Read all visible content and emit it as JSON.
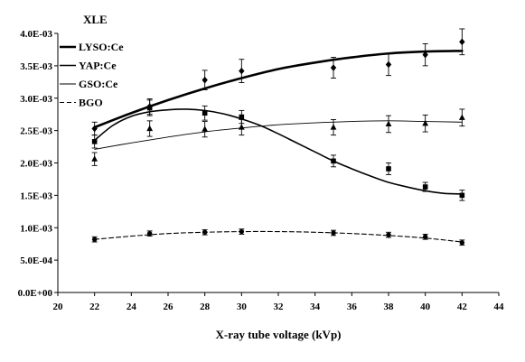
{
  "chart_data": {
    "type": "line",
    "title": "",
    "ylabel": "XLE",
    "xlabel": "X-ray tube voltage (kVp)",
    "xlim": [
      20,
      44
    ],
    "ylim": [
      0,
      0.004
    ],
    "x_ticks": [
      20,
      22,
      24,
      26,
      28,
      30,
      32,
      34,
      36,
      38,
      40,
      42,
      44
    ],
    "y_ticks": [
      {
        "value": 0,
        "label": "0.0E+00"
      },
      {
        "value": 0.0005,
        "label": "5.0E-04"
      },
      {
        "value": 0.001,
        "label": "1.0E-03"
      },
      {
        "value": 0.0015,
        "label": "1.5E-03"
      },
      {
        "value": 0.002,
        "label": "2.0E-03"
      },
      {
        "value": 0.0025,
        "label": "2.5E-03"
      },
      {
        "value": 0.003,
        "label": "3.0E-03"
      },
      {
        "value": 0.0035,
        "label": "3.5E-03"
      },
      {
        "value": 0.004,
        "label": "4.0E-03"
      }
    ],
    "grid": false,
    "legend_position": "top-left",
    "series": [
      {
        "name": "LYSO:Ce",
        "marker": "diamond",
        "line_style": "solid-thick",
        "points": [
          {
            "x": 22,
            "y": 0.00253,
            "err": 0.0001
          },
          {
            "x": 25,
            "y": 0.00287,
            "err": 0.00012
          },
          {
            "x": 28,
            "y": 0.00328,
            "err": 0.00015
          },
          {
            "x": 30,
            "y": 0.00342,
            "err": 0.00018
          },
          {
            "x": 35,
            "y": 0.00347,
            "err": 0.00016
          },
          {
            "x": 38,
            "y": 0.00352,
            "err": 0.00017
          },
          {
            "x": 40,
            "y": 0.00367,
            "err": 0.00017
          },
          {
            "x": 42,
            "y": 0.00387,
            "err": 0.0002
          }
        ],
        "trend": [
          {
            "x": 22,
            "y": 0.00255
          },
          {
            "x": 24,
            "y": 0.00277
          },
          {
            "x": 26,
            "y": 0.00297
          },
          {
            "x": 28,
            "y": 0.00315
          },
          {
            "x": 30,
            "y": 0.00331
          },
          {
            "x": 32,
            "y": 0.00345
          },
          {
            "x": 34,
            "y": 0.00355
          },
          {
            "x": 36,
            "y": 0.00363
          },
          {
            "x": 38,
            "y": 0.00369
          },
          {
            "x": 40,
            "y": 0.00372
          },
          {
            "x": 42,
            "y": 0.00373
          }
        ]
      },
      {
        "name": "YAP:Ce",
        "marker": "square",
        "line_style": "solid",
        "points": [
          {
            "x": 22,
            "y": 0.00233,
            "err": 0.0001
          },
          {
            "x": 25,
            "y": 0.00285,
            "err": 0.00012
          },
          {
            "x": 28,
            "y": 0.00277,
            "err": 0.00011
          },
          {
            "x": 30,
            "y": 0.00271,
            "err": 0.0001
          },
          {
            "x": 35,
            "y": 0.00203,
            "err": 9e-05
          },
          {
            "x": 38,
            "y": 0.00191,
            "err": 9e-05
          },
          {
            "x": 40,
            "y": 0.00163,
            "err": 7e-05
          },
          {
            "x": 42,
            "y": 0.0015,
            "err": 8e-05
          }
        ],
        "trend": [
          {
            "x": 22,
            "y": 0.00235
          },
          {
            "x": 23,
            "y": 0.00258
          },
          {
            "x": 24,
            "y": 0.00272
          },
          {
            "x": 25,
            "y": 0.00279
          },
          {
            "x": 26,
            "y": 0.00282
          },
          {
            "x": 27,
            "y": 0.00283
          },
          {
            "x": 28,
            "y": 0.00281
          },
          {
            "x": 29,
            "y": 0.00276
          },
          {
            "x": 30,
            "y": 0.00268
          },
          {
            "x": 31,
            "y": 0.00258
          },
          {
            "x": 32,
            "y": 0.00245
          },
          {
            "x": 33,
            "y": 0.00231
          },
          {
            "x": 34,
            "y": 0.00217
          },
          {
            "x": 35,
            "y": 0.00203
          },
          {
            "x": 36,
            "y": 0.00191
          },
          {
            "x": 37,
            "y": 0.0018
          },
          {
            "x": 38,
            "y": 0.0017
          },
          {
            "x": 39,
            "y": 0.00163
          },
          {
            "x": 40,
            "y": 0.00157
          },
          {
            "x": 41,
            "y": 0.00153
          },
          {
            "x": 42,
            "y": 0.00152
          }
        ]
      },
      {
        "name": "GSO:Ce",
        "marker": "triangle",
        "line_style": "solid-thin",
        "points": [
          {
            "x": 22,
            "y": 0.00206,
            "err": 0.0001
          },
          {
            "x": 25,
            "y": 0.00253,
            "err": 0.00012
          },
          {
            "x": 28,
            "y": 0.00252,
            "err": 0.00012
          },
          {
            "x": 30,
            "y": 0.00255,
            "err": 0.00012
          },
          {
            "x": 35,
            "y": 0.00255,
            "err": 0.00012
          },
          {
            "x": 38,
            "y": 0.0026,
            "err": 0.00013
          },
          {
            "x": 40,
            "y": 0.00261,
            "err": 0.00013
          },
          {
            "x": 42,
            "y": 0.0027,
            "err": 0.00013
          }
        ],
        "trend": [
          {
            "x": 22,
            "y": 0.00221
          },
          {
            "x": 24,
            "y": 0.00231
          },
          {
            "x": 26,
            "y": 0.0024
          },
          {
            "x": 28,
            "y": 0.00248
          },
          {
            "x": 30,
            "y": 0.00254
          },
          {
            "x": 32,
            "y": 0.00259
          },
          {
            "x": 34,
            "y": 0.00262
          },
          {
            "x": 36,
            "y": 0.00264
          },
          {
            "x": 38,
            "y": 0.00265
          },
          {
            "x": 40,
            "y": 0.00264
          },
          {
            "x": 42,
            "y": 0.00263
          }
        ]
      },
      {
        "name": "BGO",
        "marker": "circle",
        "line_style": "dashed",
        "points": [
          {
            "x": 22,
            "y": 0.00082,
            "err": 4e-05
          },
          {
            "x": 25,
            "y": 0.00091,
            "err": 4e-05
          },
          {
            "x": 28,
            "y": 0.00093,
            "err": 4e-05
          },
          {
            "x": 30,
            "y": 0.00094,
            "err": 4e-05
          },
          {
            "x": 35,
            "y": 0.00092,
            "err": 4e-05
          },
          {
            "x": 38,
            "y": 0.00089,
            "err": 4e-05
          },
          {
            "x": 40,
            "y": 0.00086,
            "err": 4e-05
          },
          {
            "x": 42,
            "y": 0.00077,
            "err": 4e-05
          }
        ],
        "trend": [
          {
            "x": 22,
            "y": 0.00082
          },
          {
            "x": 24,
            "y": 0.00087
          },
          {
            "x": 26,
            "y": 0.00091
          },
          {
            "x": 28,
            "y": 0.00093
          },
          {
            "x": 30,
            "y": 0.00094
          },
          {
            "x": 32,
            "y": 0.00094
          },
          {
            "x": 34,
            "y": 0.00093
          },
          {
            "x": 36,
            "y": 0.00091
          },
          {
            "x": 38,
            "y": 0.00088
          },
          {
            "x": 40,
            "y": 0.00084
          },
          {
            "x": 42,
            "y": 0.00078
          }
        ]
      }
    ]
  }
}
